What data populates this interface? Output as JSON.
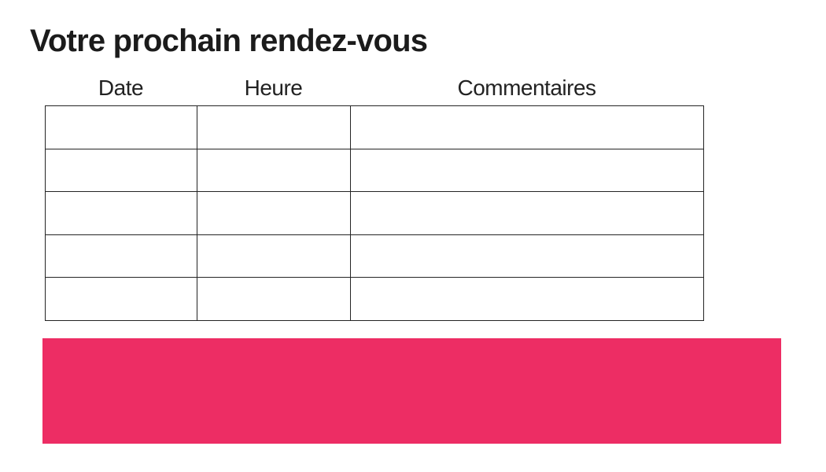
{
  "page": {
    "title": "Votre prochain rendez-vous"
  },
  "appointment_table": {
    "headers": [
      "Date",
      "Heure",
      "Commentaires"
    ],
    "rows": [
      [
        "",
        "",
        ""
      ],
      [
        "",
        "",
        ""
      ],
      [
        "",
        "",
        ""
      ],
      [
        "",
        "",
        ""
      ],
      [
        "",
        "",
        ""
      ]
    ]
  },
  "colors": {
    "accent_pink": "#ED2D64",
    "table_border": "#242424",
    "title_text": "#1B1B1B",
    "header_text": "#222222",
    "background": "#FFFFFF"
  }
}
